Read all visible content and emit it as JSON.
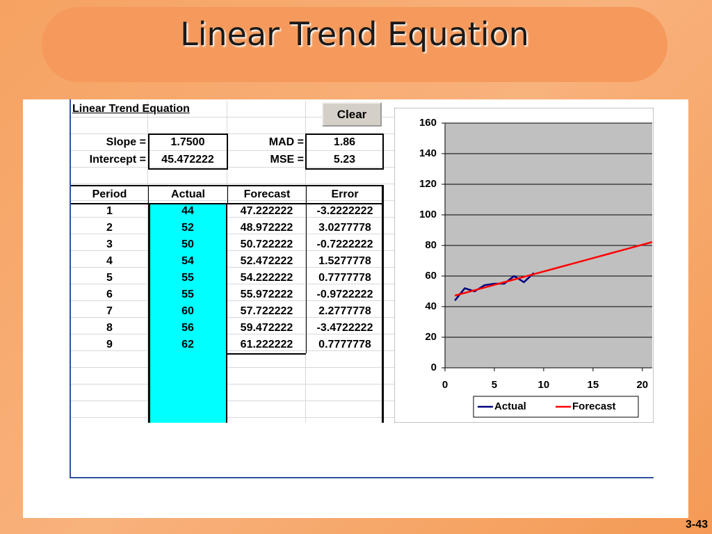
{
  "slide": {
    "title": "Linear Trend Equation",
    "page_number": "3-43"
  },
  "sheet": {
    "title": "Linear Trend Equation",
    "button": "Clear",
    "stats": [
      {
        "label": "Slope =",
        "value": "1.7500"
      },
      {
        "label": "Intercept =",
        "value": "45.472222"
      },
      {
        "label": "MAD =",
        "value": "1.86"
      },
      {
        "label": "MSE =",
        "value": "5.23"
      }
    ],
    "table": {
      "columns": [
        "Period",
        "Actual",
        "Forecast",
        "Error"
      ],
      "rows": [
        [
          "1",
          "44",
          "47.222222",
          "-3.2222222"
        ],
        [
          "2",
          "52",
          "48.972222",
          "3.0277778"
        ],
        [
          "3",
          "50",
          "50.722222",
          "-0.7222222"
        ],
        [
          "4",
          "54",
          "52.472222",
          "1.5277778"
        ],
        [
          "5",
          "55",
          "54.222222",
          "0.7777778"
        ],
        [
          "6",
          "55",
          "55.972222",
          "-0.9722222"
        ],
        [
          "7",
          "60",
          "57.722222",
          "2.2777778"
        ],
        [
          "8",
          "56",
          "59.472222",
          "-3.4722222"
        ],
        [
          "9",
          "62",
          "61.222222",
          "0.7777778"
        ]
      ]
    }
  },
  "chart_data": {
    "type": "line",
    "series": [
      {
        "name": "Actual",
        "color": "#000080",
        "x": [
          1,
          2,
          3,
          4,
          5,
          6,
          7,
          8,
          9
        ],
        "values": [
          44,
          52,
          50,
          54,
          55,
          55,
          60,
          56,
          62
        ]
      },
      {
        "name": "Forecast",
        "color": "#ff0000",
        "x": [
          1,
          2,
          3,
          4,
          5,
          6,
          7,
          8,
          9,
          10,
          11,
          12,
          13,
          14,
          15,
          16,
          17,
          18,
          19,
          20,
          21
        ],
        "values": [
          47.22,
          48.97,
          50.72,
          52.47,
          54.22,
          55.97,
          57.72,
          59.47,
          61.22,
          62.97,
          64.72,
          66.47,
          68.22,
          69.97,
          71.72,
          73.47,
          75.22,
          76.97,
          78.72,
          80.47,
          82.22
        ]
      }
    ],
    "xlim": [
      0,
      21
    ],
    "xticks": [
      0,
      5,
      10,
      15,
      20
    ],
    "ylim": [
      0,
      160
    ],
    "yticks": [
      0,
      20,
      40,
      60,
      80,
      100,
      120,
      140,
      160
    ],
    "grid": true,
    "legend": "bottom"
  }
}
